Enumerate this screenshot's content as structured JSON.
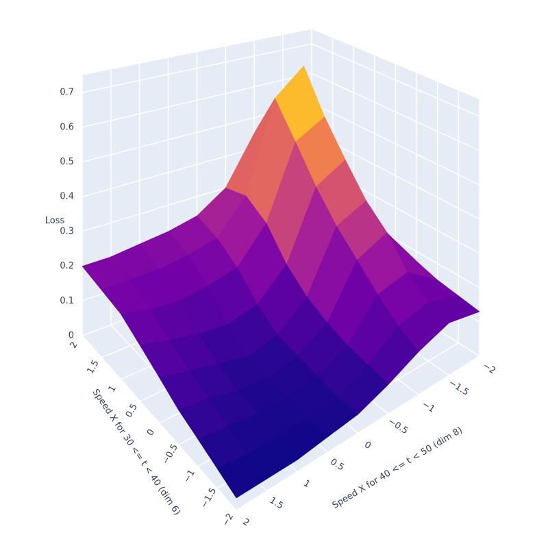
{
  "chart_data": {
    "type": "surface",
    "x_title": "Speed X for 40 <= t < 50 (dim 8)",
    "y_title": "Speed X for 30 <= t < 40 (dim 6)",
    "z_title": "Loss",
    "x": [
      -2,
      -1.5,
      -1,
      -0.5,
      0,
      0.5,
      1,
      1.5,
      2
    ],
    "y": [
      -2,
      -1.5,
      -1,
      -0.5,
      0,
      0.5,
      1,
      1.5,
      2
    ],
    "z": [
      [
        0.13,
        0.15,
        0.12,
        0.08,
        0.05,
        0.04,
        0.03,
        0.03,
        0.03
      ],
      [
        0.14,
        0.17,
        0.15,
        0.09,
        0.05,
        0.04,
        0.04,
        0.04,
        0.05
      ],
      [
        0.15,
        0.22,
        0.2,
        0.1,
        0.06,
        0.05,
        0.05,
        0.06,
        0.07
      ],
      [
        0.17,
        0.3,
        0.26,
        0.12,
        0.07,
        0.05,
        0.06,
        0.08,
        0.09
      ],
      [
        0.18,
        0.36,
        0.32,
        0.15,
        0.08,
        0.06,
        0.08,
        0.1,
        0.12
      ],
      [
        0.2,
        0.45,
        0.4,
        0.2,
        0.12,
        0.1,
        0.11,
        0.13,
        0.15
      ],
      [
        0.22,
        0.55,
        0.5,
        0.28,
        0.18,
        0.16,
        0.15,
        0.16,
        0.18
      ],
      [
        0.24,
        0.68,
        0.6,
        0.32,
        0.22,
        0.2,
        0.19,
        0.19,
        0.19
      ],
      [
        0.25,
        0.55,
        0.45,
        0.3,
        0.24,
        0.22,
        0.21,
        0.2,
        0.2
      ]
    ],
    "xlim": [
      -2,
      2
    ],
    "ylim": [
      -2,
      2
    ],
    "zlim": [
      0,
      0.75
    ],
    "xticks": [
      {
        "value": -2,
        "label": "−2"
      },
      {
        "value": -1.5,
        "label": "−1.5"
      },
      {
        "value": -1,
        "label": "−1"
      },
      {
        "value": -0.5,
        "label": "−0.5"
      },
      0,
      0.5,
      1,
      1.5,
      2
    ],
    "yticks": [
      {
        "value": -2,
        "label": "−2"
      },
      {
        "value": -1.5,
        "label": "−1.5"
      },
      {
        "value": -1,
        "label": "−1"
      },
      {
        "value": -0.5,
        "label": "−0.5"
      },
      0,
      0.5,
      1,
      1.5,
      2
    ],
    "zticks": [
      0,
      0.1,
      0.2,
      0.3,
      0.4,
      0.5,
      0.6,
      0.7
    ],
    "grid": true,
    "colorscale": [
      "#0d0887",
      "#46039f",
      "#7201a8",
      "#9c179e",
      "#bd3786",
      "#d8576b",
      "#ed7953",
      "#fb9f3a",
      "#fdca26",
      "#f0f921"
    ]
  }
}
